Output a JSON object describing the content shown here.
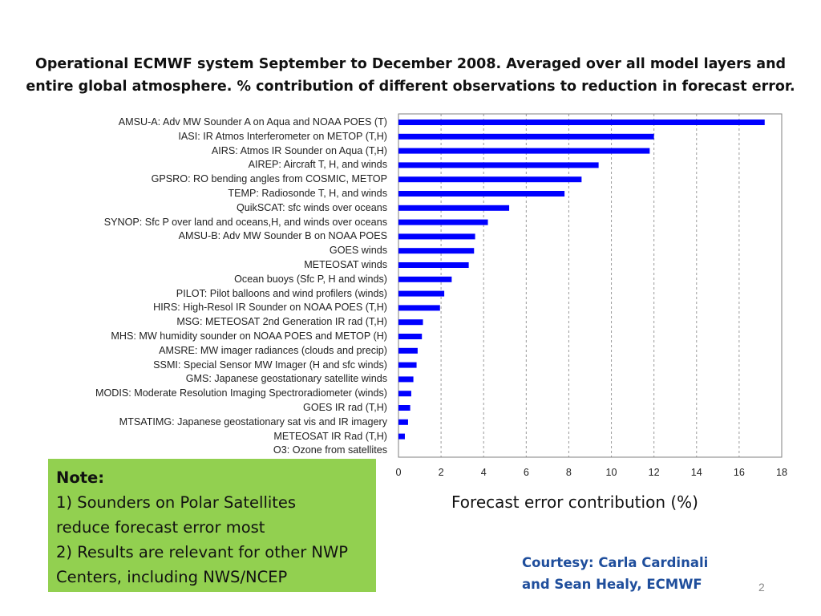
{
  "title": {
    "line1": "Operational ECMWF system September to December 2008.  Averaged over all model layers and",
    "line2": "entire global atmosphere.  % contribution of different observations to reduction in forecast error."
  },
  "chart_data": {
    "type": "bar",
    "orientation": "horizontal",
    "categories": [
      "AMSU-A: Adv MW Sounder A on Aqua and NOAA POES (T)",
      "IASI: IR Atmos Interferometer on METOP (T,H)",
      "AIRS: Atmos IR Sounder on Aqua (T,H)",
      "AIREP: Aircraft T, H, and winds",
      "GPSRO: RO bending angles from COSMIC, METOP",
      "TEMP: Radiosonde T, H, and winds",
      "QuikSCAT: sfc winds over oceans",
      "SYNOP: Sfc P over land and oceans,H, and winds over oceans",
      "AMSU-B: Adv MW Sounder B on NOAA POES",
      "GOES winds",
      "METEOSAT winds",
      "Ocean buoys (Sfc P, H and winds)",
      "PILOT: Pilot balloons and wind profilers (winds)",
      "HIRS: High-Resol IR Sounder on NOAA POES (T,H)",
      "MSG: METEOSAT 2nd Generation IR rad (T,H)",
      "MHS: MW humidity sounder on NOAA POES and METOP (H)",
      "AMSRE: MW imager radiances (clouds and precip)",
      "SSMI: Special Sensor MW Imager (H and sfc winds)",
      "GMS: Japanese geostationary satellite winds",
      "MODIS: Moderate Resolution Imaging Spectroradiometer (winds)",
      "GOES IR rad (T,H)",
      "MTSATIMG: Japanese geostationary sat vis and IR imagery",
      "METEOSAT IR Rad (T,H)",
      "O3: Ozone from satellites"
    ],
    "values": [
      17.2,
      12.0,
      11.8,
      9.4,
      8.6,
      7.8,
      5.2,
      4.2,
      3.6,
      3.55,
      3.3,
      2.5,
      2.15,
      1.95,
      1.15,
      1.1,
      0.9,
      0.85,
      0.7,
      0.6,
      0.55,
      0.45,
      0.3,
      0.0
    ],
    "xlabel": "Forecast error contribution (%)",
    "xlim": [
      0,
      18
    ],
    "xticks": [
      "0",
      "2",
      "4",
      "6",
      "8",
      "10",
      "12",
      "14",
      "16",
      "18"
    ],
    "grid": "vertical dashed",
    "bar_color": "#0000ff"
  },
  "note": {
    "title": "Note:",
    "line1": "1) Sounders on Polar Satellites",
    "line2": "reduce forecast error most",
    "line3": "2) Results are relevant for other NWP",
    "line4": "Centers, including NWS/NCEP"
  },
  "courtesy": {
    "line1": "Courtesy: Carla Cardinali",
    "line2": "and Sean Healy, ECMWF"
  },
  "page_number": "2"
}
